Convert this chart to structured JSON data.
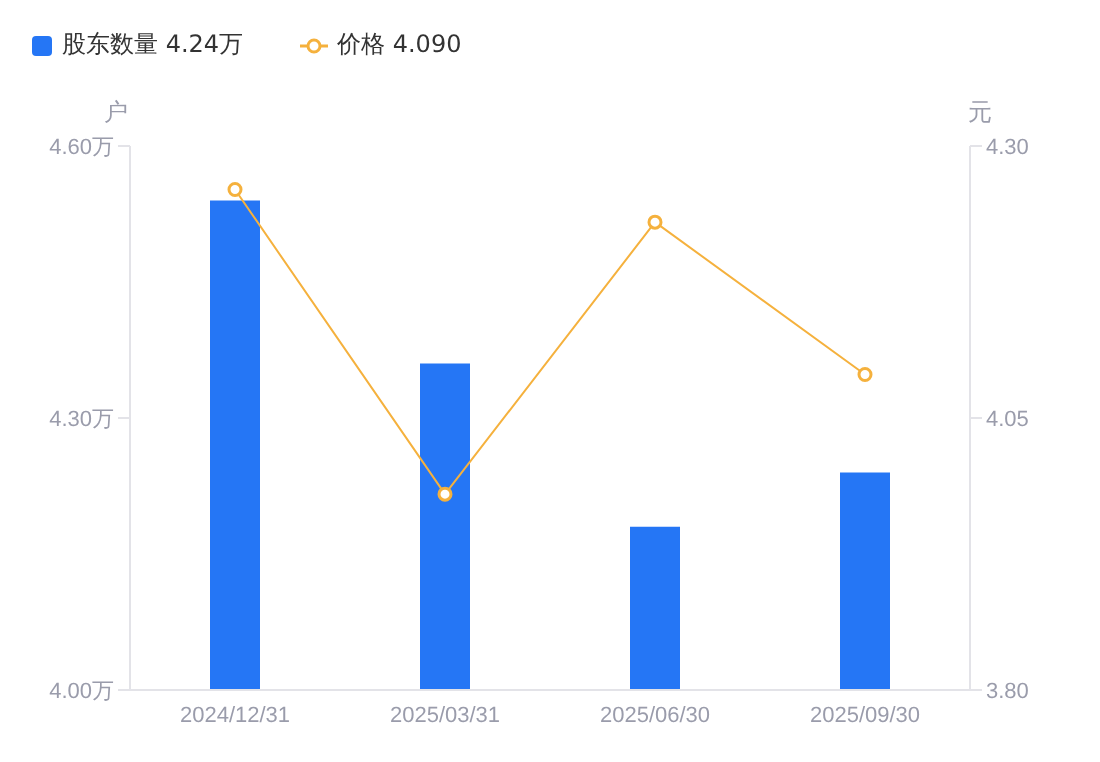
{
  "chart_data": {
    "type": "bar",
    "categories": [
      "2024/12/31",
      "2025/03/31",
      "2025/06/30",
      "2025/09/30"
    ],
    "series": [
      {
        "name": "股东数量 4.24万",
        "color": "#2576f5",
        "values": [
          4.54,
          4.36,
          4.18,
          4.24
        ]
      },
      {
        "name": "价格 4.090",
        "type": "line",
        "axis": "y2",
        "color": "#f5b13d",
        "values": [
          4.26,
          3.98,
          4.23,
          4.09
        ]
      }
    ],
    "ylabel": "户",
    "y2label": "元",
    "ylim": [
      4.0,
      4.6
    ],
    "yticks": [
      {
        "value": 4.0,
        "label": "4.00万"
      },
      {
        "value": 4.3,
        "label": "4.30万"
      },
      {
        "value": 4.6,
        "label": "4.60万"
      }
    ],
    "y2lim": [
      3.8,
      4.3
    ],
    "y2ticks": [
      {
        "value": 3.8,
        "label": "3.80"
      },
      4.05,
      {
        "value": 4.3,
        "label": "4.30"
      }
    ],
    "grid": false,
    "legend": "top left",
    "marker": "circle",
    "line_style": "solid"
  }
}
